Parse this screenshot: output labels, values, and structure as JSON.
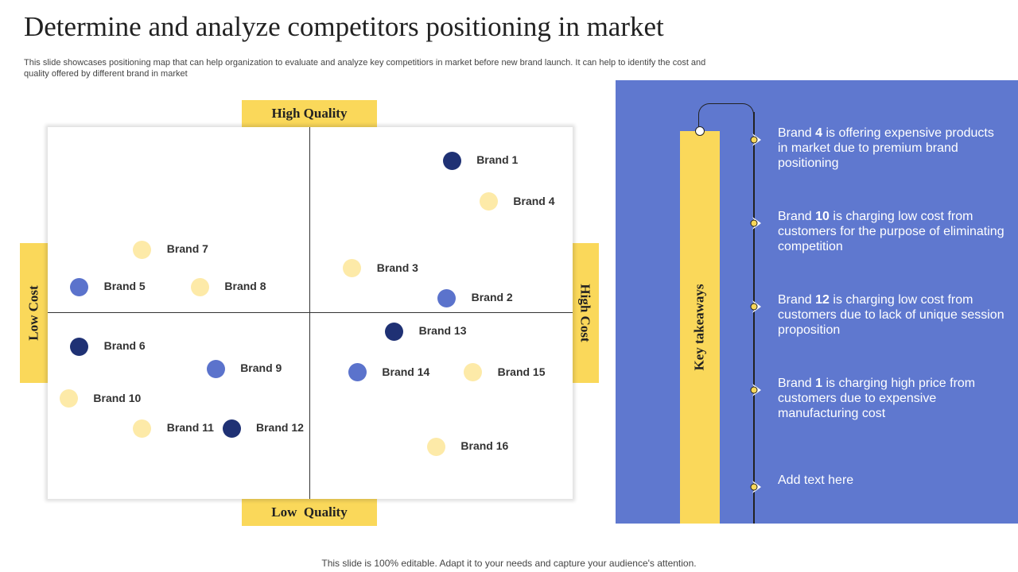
{
  "slide": {
    "title": "Determine and analyze competitors positioning in market",
    "subtitle": "This slide showcases positioning map that can help organization to evaluate and analyze key competitiors in market before new brand launch. It can help to identify the cost and quality offered by different brand in market",
    "footer": "This slide is 100% editable. Adapt it to your needs and capture your audience's attention."
  },
  "axes": {
    "top": "High Quality",
    "bottom": "Low  Quality",
    "left": "Low Cost",
    "right": "High Cost"
  },
  "colors": {
    "dark_blue": "#1f3174",
    "mid_blue": "#5b73cc",
    "light_yellow": "#fdeaa8",
    "accent_yellow": "#fad85a",
    "panel_blue": "#5f78cf"
  },
  "chart_data": {
    "type": "scatter",
    "title": "",
    "xlabel": "",
    "ylabel": "",
    "x_axis": {
      "min_label": "Low Cost",
      "max_label": "High Cost"
    },
    "y_axis": {
      "min_label": "Low  Quality",
      "max_label": "High Quality"
    },
    "points": [
      {
        "label": "Brand 1",
        "cost": 0.77,
        "quality": 0.91,
        "color": "dark_blue"
      },
      {
        "label": "Brand 4",
        "cost": 0.84,
        "quality": 0.8,
        "color": "light_yellow"
      },
      {
        "label": "Brand 7",
        "cost": 0.18,
        "quality": 0.67,
        "color": "light_yellow"
      },
      {
        "label": "Brand 3",
        "cost": 0.58,
        "quality": 0.62,
        "color": "light_yellow"
      },
      {
        "label": "Brand 5",
        "cost": 0.06,
        "quality": 0.57,
        "color": "mid_blue"
      },
      {
        "label": "Brand 8",
        "cost": 0.29,
        "quality": 0.57,
        "color": "light_yellow"
      },
      {
        "label": "Brand 2",
        "cost": 0.76,
        "quality": 0.54,
        "color": "mid_blue"
      },
      {
        "label": "Brand 13",
        "cost": 0.66,
        "quality": 0.45,
        "color": "dark_blue"
      },
      {
        "label": "Brand 6",
        "cost": 0.06,
        "quality": 0.41,
        "color": "dark_blue"
      },
      {
        "label": "Brand 9",
        "cost": 0.32,
        "quality": 0.35,
        "color": "mid_blue"
      },
      {
        "label": "Brand 14",
        "cost": 0.59,
        "quality": 0.34,
        "color": "mid_blue"
      },
      {
        "label": "Brand 15",
        "cost": 0.81,
        "quality": 0.34,
        "color": "light_yellow"
      },
      {
        "label": "Brand 10",
        "cost": 0.04,
        "quality": 0.27,
        "color": "light_yellow"
      },
      {
        "label": "Brand 11",
        "cost": 0.18,
        "quality": 0.19,
        "color": "light_yellow"
      },
      {
        "label": "Brand 12",
        "cost": 0.35,
        "quality": 0.19,
        "color": "dark_blue"
      },
      {
        "label": "Brand 16",
        "cost": 0.74,
        "quality": 0.14,
        "color": "light_yellow"
      }
    ]
  },
  "takeaways": {
    "heading": "Key takeaways",
    "items": [
      {
        "brand": "Brand ",
        "num": "4",
        "text": " is offering expensive products in market due to premium brand positioning"
      },
      {
        "brand": "Brand ",
        "num": "10",
        "text": " is charging low cost from customers for the purpose of eliminating competition"
      },
      {
        "brand": "Brand ",
        "num": "12",
        "text": " is charging low cost from customers due to lack of unique session proposition"
      },
      {
        "brand": "Brand ",
        "num": "1",
        "text": " is charging high price from customers due to expensive manufacturing  cost"
      },
      {
        "brand": "",
        "num": "",
        "text": "Add text here"
      }
    ]
  }
}
